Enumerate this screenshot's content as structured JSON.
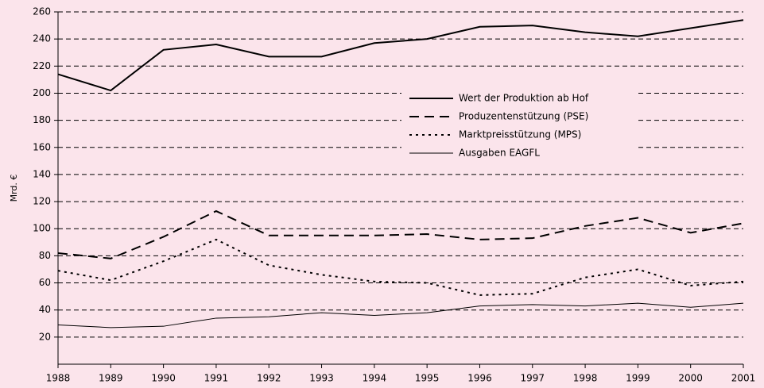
{
  "chart_data": {
    "type": "line",
    "ylabel": "Mrd. €",
    "x": [
      1988,
      1989,
      1990,
      1991,
      1992,
      1993,
      1994,
      1995,
      1996,
      1997,
      1998,
      1999,
      2000,
      2001
    ],
    "xlim": [
      1988,
      2001
    ],
    "xticks": [
      1988,
      1989,
      1990,
      1991,
      1992,
      1993,
      1994,
      1995,
      1996,
      1997,
      1998,
      1999,
      2000,
      2001
    ],
    "ylim": [
      0,
      260
    ],
    "yticks": [
      20,
      40,
      60,
      80,
      100,
      120,
      140,
      160,
      180,
      200,
      220,
      240,
      260
    ],
    "grid": true,
    "series": [
      {
        "name": "Wert der Produktion ab Hof",
        "color": "#000000",
        "style": "solid",
        "width": 2,
        "values": [
          214,
          202,
          232,
          236,
          227,
          227,
          237,
          240,
          249,
          250,
          245,
          242,
          248,
          254
        ]
      },
      {
        "name": "Produzentenstützung (PSE)",
        "color": "#000000",
        "style": "dashed",
        "width": 2,
        "values": [
          82,
          78,
          94,
          113,
          95,
          95,
          95,
          96,
          92,
          93,
          102,
          108,
          97,
          104
        ]
      },
      {
        "name": "Marktpreisstützung (MPS)",
        "color": "#000000",
        "style": "dotted",
        "width": 2,
        "values": [
          69,
          62,
          76,
          92,
          73,
          66,
          61,
          60,
          51,
          52,
          64,
          70,
          58,
          61
        ]
      },
      {
        "name": "Ausgaben EAGFL",
        "color": "#000000",
        "style": "solid",
        "width": 1,
        "values": [
          29,
          27,
          28,
          34,
          35,
          38,
          36,
          38,
          43,
          44,
          43,
          45,
          42,
          45
        ]
      }
    ]
  }
}
